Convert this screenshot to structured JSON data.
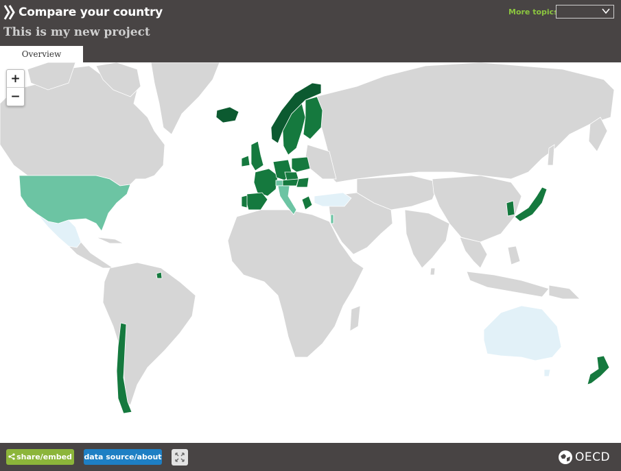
{
  "header": {
    "app_title": "Compare your country",
    "project_title": "This is my new project",
    "more_topics_label": "More topics",
    "topic_select_value": ""
  },
  "tabs": [
    {
      "label": "Overview",
      "active": true
    }
  ],
  "zoom": {
    "in_label": "+",
    "out_label": "−"
  },
  "footer": {
    "share_label": "share/embed",
    "data_label": "data source/about",
    "org_label": "OECD"
  },
  "icons": [
    "oecd-chevrons-icon",
    "chevron-down-icon",
    "plus-icon",
    "minus-icon",
    "share-icon",
    "fullscreen-icon",
    "oecd-globe-icon"
  ],
  "colors": {
    "header_bg": "#484444",
    "accent_green": "#8cc63f",
    "share_green": "#8cb53a",
    "data_blue": "#1e7fc4",
    "land_no_data": "#d6d6d6",
    "scale_darkest": "#0c5a30",
    "scale_dark": "#15793e",
    "scale_medium": "#6cc4a3",
    "scale_light": "#e2f1f8"
  },
  "map_data": {
    "type": "choropleth",
    "scale": [
      "darkest",
      "dark",
      "medium",
      "light",
      "no-data"
    ],
    "regions": [
      {
        "name": "Iceland",
        "category": "darkest"
      },
      {
        "name": "Norway",
        "category": "darkest"
      },
      {
        "name": "Sweden",
        "category": "dark"
      },
      {
        "name": "Finland",
        "category": "dark"
      },
      {
        "name": "Ireland",
        "category": "dark"
      },
      {
        "name": "United Kingdom",
        "category": "dark"
      },
      {
        "name": "France",
        "category": "dark"
      },
      {
        "name": "Spain",
        "category": "dark"
      },
      {
        "name": "Portugal",
        "category": "dark"
      },
      {
        "name": "Germany",
        "category": "dark"
      },
      {
        "name": "Poland",
        "category": "dark"
      },
      {
        "name": "Czech Republic",
        "category": "dark"
      },
      {
        "name": "Austria",
        "category": "dark"
      },
      {
        "name": "Hungary",
        "category": "dark"
      },
      {
        "name": "Slovakia",
        "category": "dark"
      },
      {
        "name": "Slovenia",
        "category": "dark"
      },
      {
        "name": "Switzerland",
        "category": "medium"
      },
      {
        "name": "Italy",
        "category": "medium"
      },
      {
        "name": "Greece",
        "category": "dark"
      },
      {
        "name": "Israel",
        "category": "medium"
      },
      {
        "name": "Turkey",
        "category": "light"
      },
      {
        "name": "United States",
        "category": "medium"
      },
      {
        "name": "Mexico",
        "category": "light"
      },
      {
        "name": "Chile",
        "category": "dark"
      },
      {
        "name": "Japan",
        "category": "dark"
      },
      {
        "name": "Korea",
        "category": "dark"
      },
      {
        "name": "Australia",
        "category": "light"
      },
      {
        "name": "New Zealand",
        "category": "dark"
      }
    ]
  }
}
